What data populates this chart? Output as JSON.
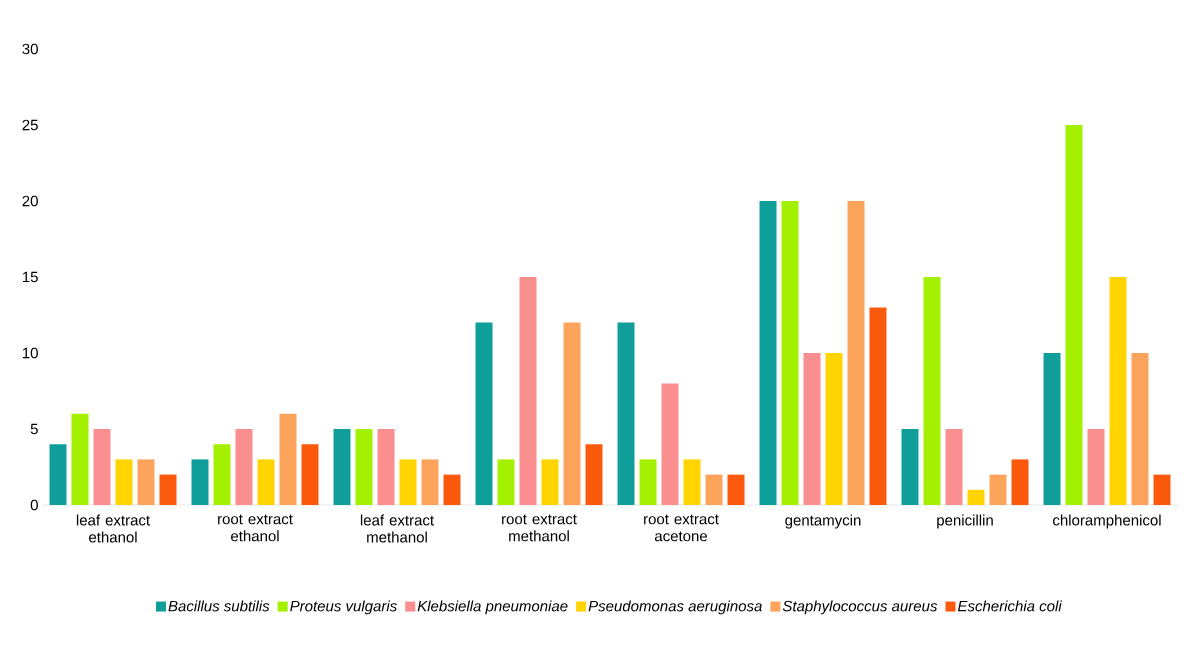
{
  "chart_data": {
    "type": "bar",
    "categories": [
      "leaf extract ethanol",
      "root extract ethanol",
      "leaf extract methanol",
      "root extract methanol",
      "root extract acetone",
      "gentamycin",
      "penicillin",
      "chloramphenicol"
    ],
    "series": [
      {
        "name": "*Bacillus subtilis*",
        "color": "#0f9e9a",
        "values": [
          4,
          3,
          5,
          12,
          12,
          20,
          5,
          10
        ]
      },
      {
        "name": "*Proteus vulgaris*",
        "color": "#a3f000",
        "values": [
          6,
          4,
          5,
          3,
          3,
          20,
          15,
          25
        ]
      },
      {
        "name": "*Klebsiella pneumoniae*",
        "color": "#fb8e8e",
        "values": [
          5,
          5,
          5,
          15,
          8,
          10,
          5,
          5
        ]
      },
      {
        "name": "*Pseudomonas aeruginosa*",
        "color": "#ffd400",
        "values": [
          3,
          3,
          3,
          3,
          3,
          10,
          1,
          15
        ]
      },
      {
        "name": "*Staphylococcus aureus*",
        "color": "#fca45c",
        "values": [
          3,
          6,
          3,
          12,
          2,
          20,
          2,
          10
        ]
      },
      {
        "name": "*Escherichia coli*",
        "color": "#fb5a0c",
        "values": [
          2,
          4,
          2,
          4,
          2,
          13,
          3,
          2
        ]
      }
    ],
    "ylim": [
      0,
      30
    ],
    "yticks": [
      0,
      5,
      10,
      15,
      20,
      25,
      30
    ],
    "grid": false,
    "legend": "bottom"
  }
}
